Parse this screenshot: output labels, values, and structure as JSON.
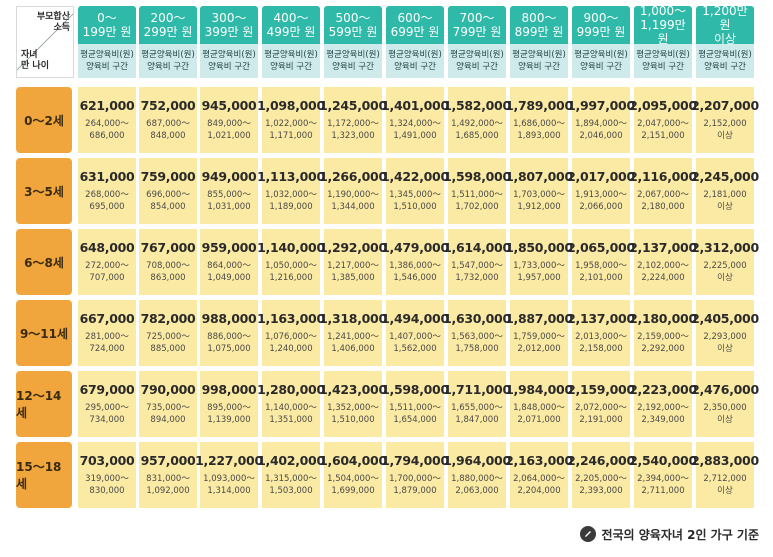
{
  "corner": {
    "top": "부모합산\n소득",
    "bottom": "자녀\n만 나이"
  },
  "headers": [
    {
      "income": "0～\n199만 원",
      "sub1": "평균양육비(원)",
      "sub2": "양육비 구간"
    },
    {
      "income": "200～\n299만 원",
      "sub1": "평균양육비(원)",
      "sub2": "양육비 구간"
    },
    {
      "income": "300～\n399만 원",
      "sub1": "평균양육비(원)",
      "sub2": "양육비 구간"
    },
    {
      "income": "400～\n499만 원",
      "sub1": "평균양육비(원)",
      "sub2": "양육비 구간"
    },
    {
      "income": "500～\n599만 원",
      "sub1": "평균양육비(원)",
      "sub2": "양육비 구간"
    },
    {
      "income": "600～\n699만 원",
      "sub1": "평균양육비(원)",
      "sub2": "양육비 구간"
    },
    {
      "income": "700～\n799만 원",
      "sub1": "평균양육비(원)",
      "sub2": "양육비 구간"
    },
    {
      "income": "800～\n899만 원",
      "sub1": "평균양육비(원)",
      "sub2": "양육비 구간"
    },
    {
      "income": "900～\n999만 원",
      "sub1": "평균양육비(원)",
      "sub2": "양육비 구간"
    },
    {
      "income": "1,000～\n1,199만 원",
      "sub1": "평균양육비(원)",
      "sub2": "양육비 구간"
    },
    {
      "income": "1,200만 원\n이상",
      "sub1": "평균양육비(원)",
      "sub2": "양육비 구간"
    }
  ],
  "rows": [
    {
      "age": "0～2세",
      "cells": [
        {
          "avg": "621,000",
          "range": "264,000～\n686,000"
        },
        {
          "avg": "752,000",
          "range": "687,000～\n848,000"
        },
        {
          "avg": "945,000",
          "range": "849,000～\n1,021,000"
        },
        {
          "avg": "1,098,000",
          "range": "1,022,000～\n1,171,000"
        },
        {
          "avg": "1,245,000",
          "range": "1,172,000～\n1,323,000"
        },
        {
          "avg": "1,401,000",
          "range": "1,324,000～\n1,491,000"
        },
        {
          "avg": "1,582,000",
          "range": "1,492,000～\n1,685,000"
        },
        {
          "avg": "1,789,000",
          "range": "1,686,000～\n1,893,000"
        },
        {
          "avg": "1,997,000",
          "range": "1,894,000～\n2,046,000"
        },
        {
          "avg": "2,095,000",
          "range": "2,047,000～\n2,151,000"
        },
        {
          "avg": "2,207,000",
          "range": "2,152,000\n이상"
        }
      ]
    },
    {
      "age": "3～5세",
      "cells": [
        {
          "avg": "631,000",
          "range": "268,000～\n695,000"
        },
        {
          "avg": "759,000",
          "range": "696,000～\n854,000"
        },
        {
          "avg": "949,000",
          "range": "855,000～\n1,031,000"
        },
        {
          "avg": "1,113,000",
          "range": "1,032,000～\n1,189,000"
        },
        {
          "avg": "1,266,000",
          "range": "1,190,000～\n1,344,000"
        },
        {
          "avg": "1,422,000",
          "range": "1,345,000～\n1,510,000"
        },
        {
          "avg": "1,598,000",
          "range": "1,511,000～\n1,702,000"
        },
        {
          "avg": "1,807,000",
          "range": "1,703,000～\n1,912,000"
        },
        {
          "avg": "2,017,000",
          "range": "1,913,000～\n2,066,000"
        },
        {
          "avg": "2,116,000",
          "range": "2,067,000～\n2,180,000"
        },
        {
          "avg": "2,245,000",
          "range": "2,181,000\n이상"
        }
      ]
    },
    {
      "age": "6～8세",
      "cells": [
        {
          "avg": "648,000",
          "range": "272,000～\n707,000"
        },
        {
          "avg": "767,000",
          "range": "708,000～\n863,000"
        },
        {
          "avg": "959,000",
          "range": "864,000～\n1,049,000"
        },
        {
          "avg": "1,140,000",
          "range": "1,050,000～\n1,216,000"
        },
        {
          "avg": "1,292,000",
          "range": "1,217,000～\n1,385,000"
        },
        {
          "avg": "1,479,000",
          "range": "1,386,000～\n1,546,000"
        },
        {
          "avg": "1,614,000",
          "range": "1,547,000～\n1,732,000"
        },
        {
          "avg": "1,850,000",
          "range": "1,733,000～\n1,957,000"
        },
        {
          "avg": "2,065,000",
          "range": "1,958,000～\n2,101,000"
        },
        {
          "avg": "2,137,000",
          "range": "2,102,000～\n2,224,000"
        },
        {
          "avg": "2,312,000",
          "range": "2,225,000\n이상"
        }
      ]
    },
    {
      "age": "9～11세",
      "cells": [
        {
          "avg": "667,000",
          "range": "281,000～\n724,000"
        },
        {
          "avg": "782,000",
          "range": "725,000～\n885,000"
        },
        {
          "avg": "988,000",
          "range": "886,000～\n1,075,000"
        },
        {
          "avg": "1,163,000",
          "range": "1,076,000～\n1,240,000"
        },
        {
          "avg": "1,318,000",
          "range": "1,241,000～\n1,406,000"
        },
        {
          "avg": "1,494,000",
          "range": "1,407,000～\n1,562,000"
        },
        {
          "avg": "1,630,000",
          "range": "1,563,000～\n1,758,000"
        },
        {
          "avg": "1,887,000",
          "range": "1,759,000～\n2,012,000"
        },
        {
          "avg": "2,137,000",
          "range": "2,013,000～\n2,158,000"
        },
        {
          "avg": "2,180,000",
          "range": "2,159,000～\n2,292,000"
        },
        {
          "avg": "2,405,000",
          "range": "2,293,000\n이상"
        }
      ]
    },
    {
      "age": "12～14세",
      "cells": [
        {
          "avg": "679,000",
          "range": "295,000～\n734,000"
        },
        {
          "avg": "790,000",
          "range": "735,000～\n894,000"
        },
        {
          "avg": "998,000",
          "range": "895,000～\n1,139,000"
        },
        {
          "avg": "1,280,000",
          "range": "1,140,000～\n1,351,000"
        },
        {
          "avg": "1,423,000",
          "range": "1,352,000～\n1,510,000"
        },
        {
          "avg": "1,598,000",
          "range": "1,511,000～\n1,654,000"
        },
        {
          "avg": "1,711,000",
          "range": "1,655,000～\n1,847,000"
        },
        {
          "avg": "1,984,000",
          "range": "1,848,000～\n2,071,000"
        },
        {
          "avg": "2,159,000",
          "range": "2,072,000～\n2,191,000"
        },
        {
          "avg": "2,223,000",
          "range": "2,192,000～\n2,349,000"
        },
        {
          "avg": "2,476,000",
          "range": "2,350,000\n이상"
        }
      ]
    },
    {
      "age": "15～18세",
      "cells": [
        {
          "avg": "703,000",
          "range": "319,000～\n830,000"
        },
        {
          "avg": "957,000",
          "range": "831,000～\n1,092,000"
        },
        {
          "avg": "1,227,000",
          "range": "1,093,000～\n1,314,000"
        },
        {
          "avg": "1,402,000",
          "range": "1,315,000～\n1,503,000"
        },
        {
          "avg": "1,604,000",
          "range": "1,504,000～\n1,699,000"
        },
        {
          "avg": "1,794,000",
          "range": "1,700,000～\n1,879,000"
        },
        {
          "avg": "1,964,000",
          "range": "1,880,000～\n2,063,000"
        },
        {
          "avg": "2,163,000",
          "range": "2,064,000～\n2,204,000"
        },
        {
          "avg": "2,246,000",
          "range": "2,205,000～\n2,393,000"
        },
        {
          "avg": "2,540,000",
          "range": "2,394,000～\n2,711,000"
        },
        {
          "avg": "2,883,000",
          "range": "2,712,000\n이상"
        }
      ]
    }
  ],
  "footnote": "전국의 양육자녀 2인 가구 기준",
  "colors": {
    "header_bg": "#2fb9a8",
    "subheader_bg": "#cfeaea",
    "age_bg": "#f0a63c",
    "cell_bg": "#fbeaa3"
  }
}
